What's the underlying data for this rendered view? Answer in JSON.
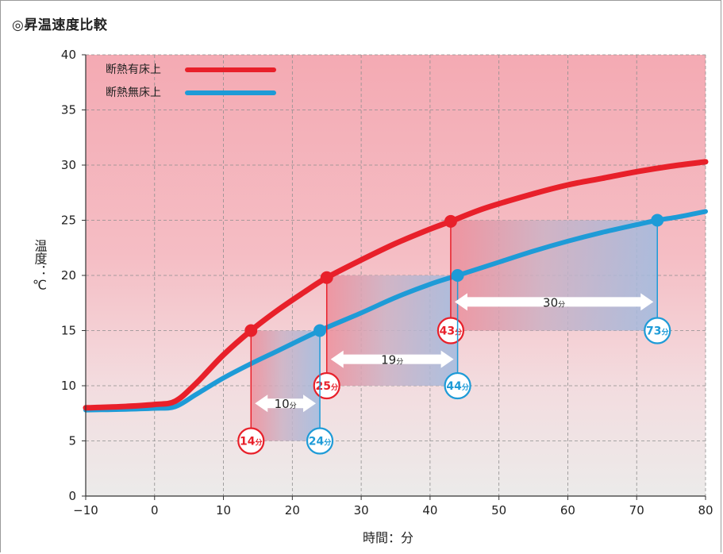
{
  "title": "◎昇温速度比較",
  "chart_data": {
    "type": "line",
    "xlabel": "時間：分",
    "ylabel": "温度：℃",
    "xlim": [
      -10,
      80
    ],
    "ylim": [
      0,
      40
    ],
    "xticks": [
      -10,
      0,
      10,
      20,
      30,
      40,
      50,
      60,
      70,
      80
    ],
    "yticks": [
      0,
      5,
      10,
      15,
      20,
      25,
      30,
      35,
      40
    ],
    "grid": true,
    "legend": "top-left",
    "series": [
      {
        "name": "断熱有床上",
        "color": "#e8202a",
        "x": [
          -10,
          -5,
          0,
          3,
          6,
          10,
          14,
          18,
          22,
          25,
          30,
          35,
          40,
          43,
          48,
          55,
          60,
          65,
          70,
          75,
          80
        ],
        "y": [
          8,
          8.1,
          8.3,
          8.6,
          10.2,
          12.8,
          15,
          16.9,
          18.6,
          19.8,
          21.4,
          22.9,
          24.2,
          24.9,
          26.1,
          27.4,
          28.2,
          28.8,
          29.4,
          29.9,
          30.3
        ]
      },
      {
        "name": "断熱無床上",
        "color": "#1e9bd7",
        "x": [
          -10,
          -5,
          0,
          3,
          6,
          10,
          14,
          18,
          24,
          30,
          35,
          40,
          44,
          50,
          55,
          60,
          65,
          70,
          73,
          76,
          80
        ],
        "y": [
          7.8,
          7.85,
          7.95,
          8.1,
          9.2,
          10.7,
          12,
          13.2,
          15,
          16.6,
          18,
          19.2,
          20,
          21.2,
          22.2,
          23.1,
          23.9,
          24.6,
          25,
          25.3,
          25.8
        ]
      }
    ],
    "points": [
      {
        "series": 0,
        "x": 14,
        "y": 15,
        "label": "14"
      },
      {
        "series": 0,
        "x": 25,
        "y": 19.8,
        "label": "25"
      },
      {
        "series": 0,
        "x": 43,
        "y": 24.9,
        "label": "43"
      },
      {
        "series": 1,
        "x": 24,
        "y": 15,
        "label": "24"
      },
      {
        "series": 1,
        "x": 44,
        "y": 20,
        "label": "44"
      },
      {
        "series": 1,
        "x": 73,
        "y": 25,
        "label": "73"
      }
    ],
    "comparisons": [
      {
        "temp": 15,
        "from": 14,
        "to": 24,
        "diff": "10",
        "bubble_y": 5,
        "arrow_y": 8.4
      },
      {
        "temp": 20,
        "from": 25,
        "to": 44,
        "diff": "19",
        "bubble_y": 10,
        "arrow_y": 12.4
      },
      {
        "temp": 25,
        "from": 43,
        "to": 73,
        "diff": "30",
        "bubble_y": 15,
        "arrow_y": 17.6
      }
    ],
    "unit": "分"
  }
}
